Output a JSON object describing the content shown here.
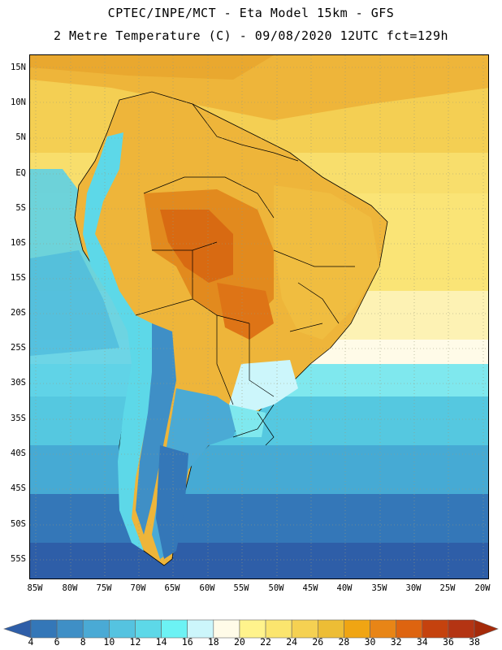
{
  "header": {
    "line1": "CPTEC/INPE/MCT -  Eta Model 15km - GFS",
    "line2": "2 Metre Temperature (C) - 09/08/2020 12UTC fct=129h"
  },
  "map": {
    "lat_labels": [
      "15N",
      "10N",
      "5N",
      "EQ",
      "5S",
      "10S",
      "15S",
      "20S",
      "25S",
      "30S",
      "35S",
      "40S",
      "45S",
      "50S",
      "55S"
    ],
    "lon_labels": [
      "85W",
      "80W",
      "75W",
      "70W",
      "65W",
      "60W",
      "55W",
      "50W",
      "45W",
      "40W",
      "35W",
      "30W",
      "25W",
      "20W"
    ]
  },
  "colorbar": {
    "levels": [
      "4",
      "6",
      "8",
      "10",
      "12",
      "14",
      "16",
      "18",
      "20",
      "22",
      "24",
      "26",
      "28",
      "30",
      "32",
      "34",
      "36",
      "38"
    ],
    "colors": [
      "#2e5ea8",
      "#3477b8",
      "#3f8fc6",
      "#4aaad5",
      "#55c3e0",
      "#5dd8e8",
      "#6cf2f4",
      "#ccf6fb",
      "#fffbe8",
      "#fff38c",
      "#fbe56e",
      "#f5d152",
      "#edbd35",
      "#f0a513",
      "#e88516",
      "#de6410",
      "#c5420e",
      "#b43413",
      "#a52a0a"
    ]
  }
}
